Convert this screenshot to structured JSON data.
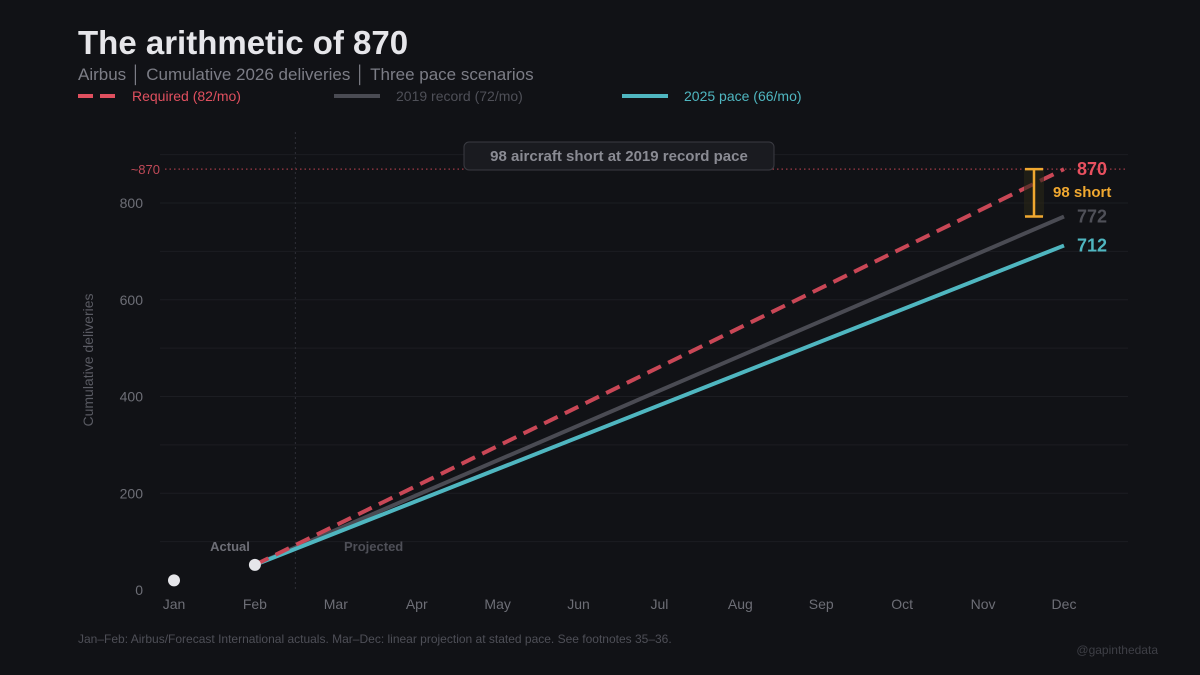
{
  "title": "The arithmetic of 870",
  "subtitle": "Airbus │ Cumulative 2026 deliveries │ Three pace scenarios",
  "footer": "Jan–Feb: Airbus/Forecast International actuals. Mar–Dec: linear projection at stated pace. See footnotes 35–36.",
  "credit": "@gapinthedata",
  "chart_data": {
    "type": "line",
    "ylabel": "Cumulative deliveries",
    "categories": [
      "Jan",
      "Feb",
      "Mar",
      "Apr",
      "May",
      "Jun",
      "Jul",
      "Aug",
      "Sep",
      "Oct",
      "Nov",
      "Dec"
    ],
    "ylim": [
      0,
      900
    ],
    "yticks": [
      0,
      200,
      400,
      600,
      800
    ],
    "grid": true,
    "legend_position": "top-left",
    "actuals": {
      "x": [
        "Jan",
        "Feb"
      ],
      "values": [
        20,
        52
      ]
    },
    "series": [
      {
        "name": "Required (82/mo)",
        "start": "Feb",
        "end": "Dec",
        "start_value": 52,
        "end_value": 870,
        "end_label": "870",
        "color": "#e0505f",
        "dashed": true
      },
      {
        "name": "2019 record (72/mo)",
        "start": "Feb",
        "end": "Dec",
        "start_value": 52,
        "end_value": 772,
        "end_label": "772",
        "color": "#4a4b53",
        "dashed": false
      },
      {
        "name": "2025 pace (66/mo)",
        "start": "Feb",
        "end": "Dec",
        "start_value": 52,
        "end_value": 712,
        "end_label": "712",
        "color": "#4fb6c0",
        "dashed": false
      }
    ],
    "reference_line": {
      "value": 870,
      "label": "~870",
      "color": "#a03a46"
    },
    "annotations": {
      "callout": "98 aircraft short at 2019 record pace",
      "gap_label": "98 short",
      "gap_from": 772,
      "gap_to": 870,
      "gap_color": "#f0a830",
      "actual_label": "Actual",
      "projected_label": "Projected"
    }
  }
}
